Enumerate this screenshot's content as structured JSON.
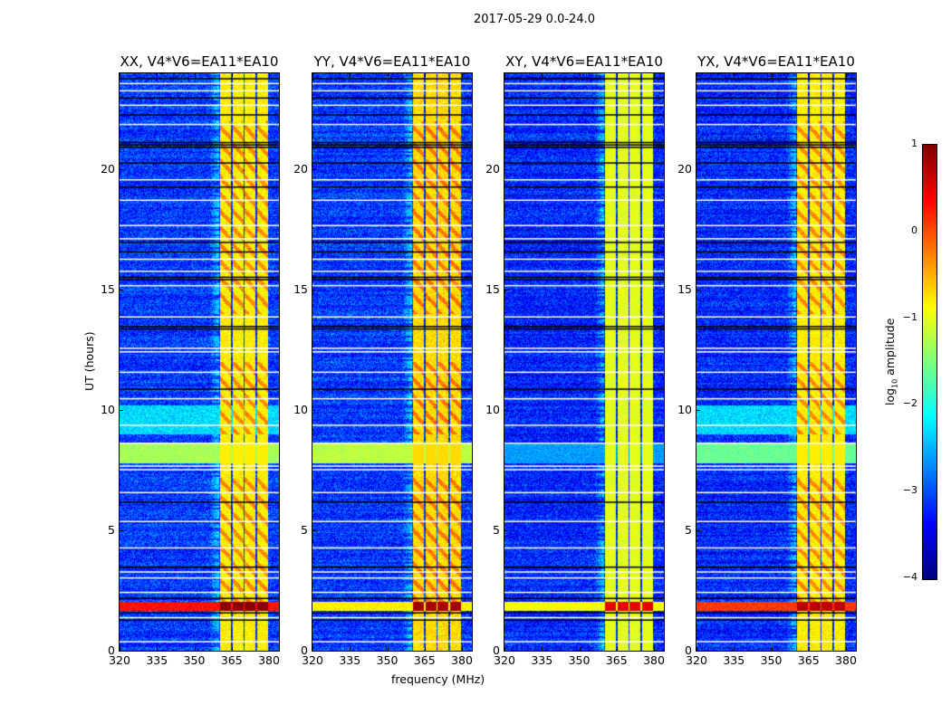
{
  "chart_data": {
    "type": "heatmap",
    "title": "2017-05-29 0.0-24.0",
    "xlabel": "frequency (MHz)",
    "ylabel": "UT (hours)",
    "xlim": [
      320,
      384
    ],
    "ylim": [
      0,
      24
    ],
    "xticks": [
      "320",
      "335",
      "350",
      "365",
      "380"
    ],
    "xtick_values": [
      320,
      335,
      350,
      365,
      380
    ],
    "yticks": [
      "0",
      "5",
      "10",
      "15",
      "20"
    ],
    "ytick_values": [
      0,
      5,
      10,
      15,
      20
    ],
    "colorbar": {
      "label_prefix": "log",
      "label_sub": "10",
      "label_suffix": " amplitude",
      "colormap": "jet",
      "range": [
        -4,
        1
      ],
      "ticks": [
        "1",
        "0",
        "−1",
        "−2",
        "−3",
        "−4"
      ],
      "tick_values": [
        1,
        0,
        -1,
        -2,
        -3,
        -4
      ]
    },
    "panels": [
      {
        "title": "XX, V4*V6=EA11*EA10",
        "background": -3.1,
        "band_level": -0.8,
        "event_level": 0.3,
        "event_band_level": 0.95,
        "green_level": -1.3
      },
      {
        "title": "YY, V4*V6=EA11*EA10",
        "background": -3.1,
        "band_level": -0.7,
        "event_level": -0.8,
        "event_band_level": 0.8,
        "green_level": -1.2
      },
      {
        "title": "XY, V4*V6=EA11*EA10",
        "background": -3.2,
        "band_level": -1.0,
        "event_level": -0.9,
        "event_band_level": 0.5,
        "green_level": -2.6
      },
      {
        "title": "YX, V4*V6=EA11*EA10",
        "background": -3.2,
        "band_level": -0.8,
        "event_level": 0.1,
        "event_band_level": 0.7,
        "green_level": -1.6
      }
    ],
    "bright_subbands_mhz": [
      [
        360,
        365
      ],
      [
        365,
        370
      ],
      [
        370,
        375
      ],
      [
        375,
        380
      ]
    ],
    "rfi_event_hours": [
      1.65,
      2.05
    ],
    "green_period_hours": [
      7.8,
      8.6
    ],
    "flagged_white_hours": [
      0.4,
      1.4,
      2.45,
      3.05,
      3.3,
      4.3,
      5.4,
      6.6,
      7.55,
      7.7,
      8.65,
      9.4,
      10.5,
      11.6,
      12.45,
      12.6,
      13.9,
      15.2,
      15.8,
      16.3,
      17.15,
      17.7,
      18.75,
      19.6,
      21.9,
      22.7,
      23.3,
      23.6
    ],
    "flagged_black_hours": [
      1.3,
      1.6,
      2.2,
      3.5,
      6.2,
      10.9,
      13.4,
      13.5,
      15.45,
      15.55,
      16.6,
      17.0,
      19.3,
      20.3,
      20.95,
      21.05,
      21.15,
      22.3,
      23.0,
      23.8
    ]
  }
}
